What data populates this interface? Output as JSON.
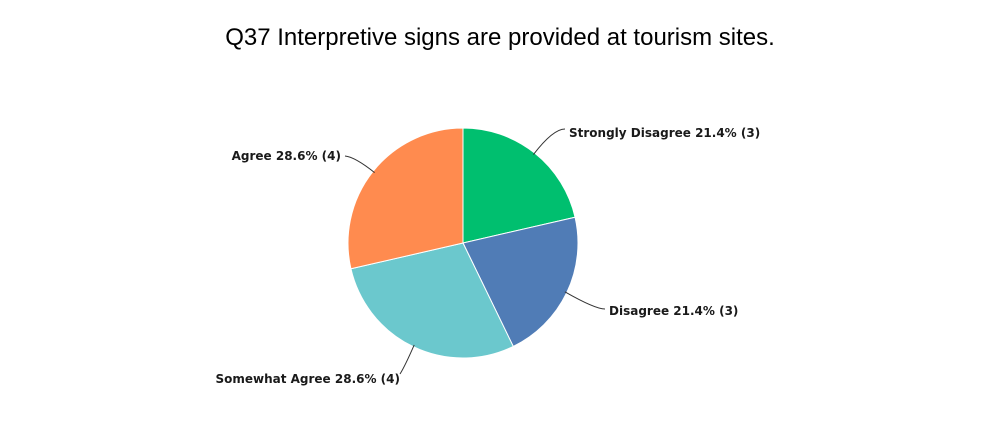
{
  "chart_data": {
    "type": "pie",
    "title": "Q37 Interpretive signs are provided at tourism sites.",
    "slices": [
      {
        "label": "Strongly Disagree",
        "percent_label": "21.4%",
        "count": 3,
        "value": 21.4,
        "color": "#00BF6F"
      },
      {
        "label": "Disagree",
        "percent_label": "21.4%",
        "count": 3,
        "value": 21.4,
        "color": "#507CB6"
      },
      {
        "label": "Somewhat Agree",
        "percent_label": "28.6%",
        "count": 4,
        "value": 28.6,
        "color": "#6BC8CD"
      },
      {
        "label": "Agree",
        "percent_label": "28.6%",
        "count": 4,
        "value": 28.6,
        "color": "#FF8B4F"
      }
    ]
  }
}
